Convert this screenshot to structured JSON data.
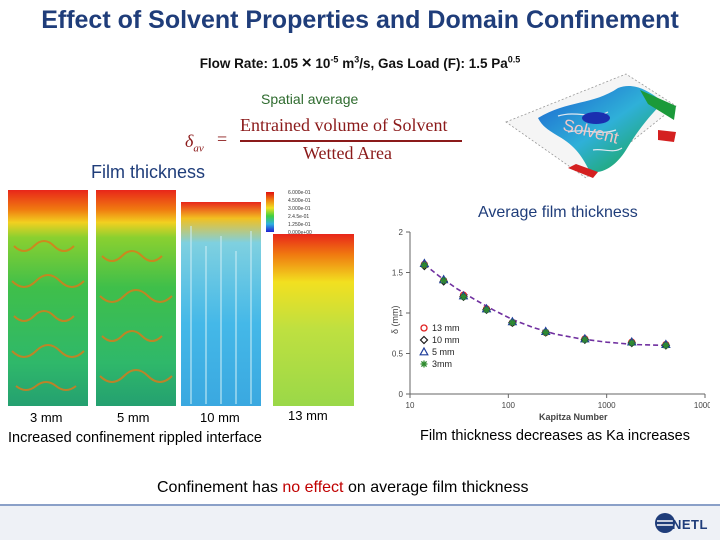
{
  "title": "Effect of Solvent Properties and Domain Confinement",
  "subtitle": {
    "prefix": "Flow Rate: 1.05 ",
    "times": "×",
    "ten": " 10",
    "exp1": "-5",
    "units1": " m",
    "exp2": "3",
    "units2": "/s,  Gas Load (F):  1.5 Pa",
    "exp3": "0.5"
  },
  "spatial_average": "Spatial average",
  "equation": {
    "lhs_symbol": "δ",
    "lhs_sub": "av",
    "equals": "=",
    "numerator": "Entrained volume of Solvent",
    "denominator": "Wetted Area"
  },
  "solvent_label": "Solvent",
  "film_thickness_label": "Film thickness",
  "colorbar_labels": [
    "6.000e-01",
    "4.500e-01",
    "3.000e-01",
    "2.4.5e-01",
    "1.250e-01",
    "0.000e+00"
  ],
  "panel_labels": [
    "3 mm",
    "5 mm",
    "10 mm",
    "13 mm"
  ],
  "confinement_caption": "Increased confinement rippled interface",
  "average_film_label": "Average film thickness",
  "ka_caption": "Film thickness decreases as Ka increases",
  "conclusion": {
    "part1": "Confinement has ",
    "highlight": "no effect",
    "part2": " on average film thickness"
  },
  "logo_text": "NETL",
  "colors": {
    "title": "#1f3d7a",
    "highlight": "#c00000",
    "series_13mm": "#e02020",
    "series_10mm": "#1a1a1a",
    "series_5mm": "#1f3d9a",
    "series_3mm": "#2e8b2e",
    "fit_line": "#7030a0"
  },
  "chart_data": {
    "type": "scatter",
    "title": "",
    "xlabel": "Kapitza Number",
    "ylabel": "δ (mm)",
    "xscale": "log",
    "xlim": [
      10,
      10000
    ],
    "ylim": [
      0,
      2
    ],
    "x_ticks": [
      "10",
      "100",
      "1000",
      "10000"
    ],
    "y_ticks": [
      "0",
      "0.5",
      "1",
      "1.5",
      "2"
    ],
    "legend_position": "bottom-left",
    "grid": false,
    "series": [
      {
        "name": "13 mm",
        "marker": "circle",
        "x": [
          14,
          22,
          35,
          60,
          110,
          240,
          600,
          1800,
          4000
        ],
        "y": [
          1.6,
          1.4,
          1.22,
          1.05,
          0.88,
          0.76,
          0.68,
          0.64,
          0.61
        ]
      },
      {
        "name": "10 mm",
        "marker": "diamond",
        "x": [
          14,
          22,
          35,
          60,
          110,
          240,
          600,
          1800,
          4000
        ],
        "y": [
          1.58,
          1.39,
          1.2,
          1.04,
          0.88,
          0.76,
          0.67,
          0.63,
          0.6
        ]
      },
      {
        "name": "5 mm",
        "marker": "triangle",
        "x": [
          14,
          22,
          35,
          60,
          110,
          240,
          600,
          1800,
          4000
        ],
        "y": [
          1.61,
          1.41,
          1.21,
          1.05,
          0.89,
          0.77,
          0.68,
          0.64,
          0.61
        ]
      },
      {
        "name": "3mm",
        "marker": "star",
        "x": [
          14,
          22,
          35,
          60,
          110,
          240,
          600,
          1800,
          4000
        ],
        "y": [
          1.59,
          1.4,
          1.2,
          1.04,
          0.88,
          0.76,
          0.67,
          0.63,
          0.6
        ]
      }
    ],
    "fit_line": {
      "x": [
        14,
        20,
        30,
        45,
        70,
        110,
        180,
        300,
        550,
        1000,
        2000,
        4000
      ],
      "y": [
        1.6,
        1.45,
        1.3,
        1.17,
        1.04,
        0.92,
        0.82,
        0.74,
        0.68,
        0.64,
        0.61,
        0.6
      ]
    }
  }
}
